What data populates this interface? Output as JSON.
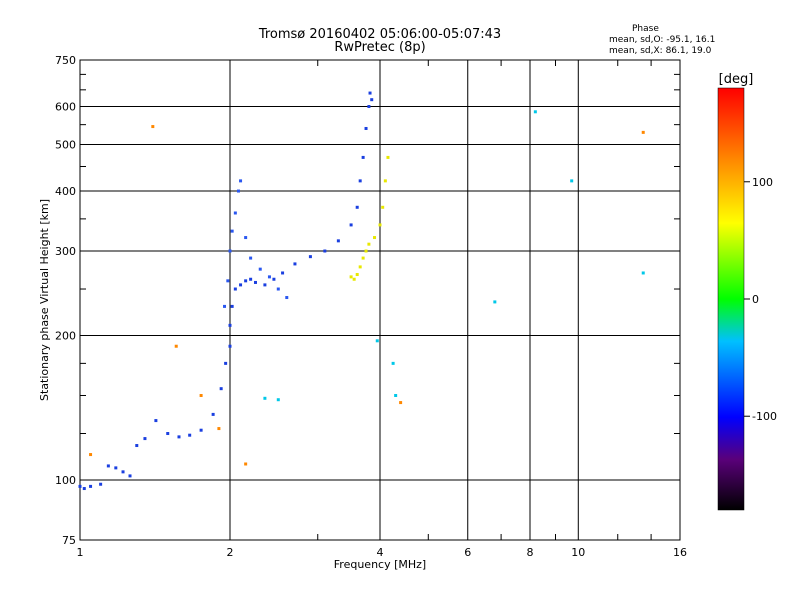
{
  "chart_data": {
    "type": "scatter",
    "title": "Tromsø 20160402 05:06:00-05:07:43",
    "subtitle": "RwPretec (8p)",
    "xlabel": "Frequency [MHz]",
    "ylabel": "Stationary phase Virtual Height [km]",
    "x_scale": "log",
    "y_scale": "log",
    "xlim": [
      1,
      16
    ],
    "ylim": [
      75,
      750
    ],
    "x_ticks": [
      1,
      2,
      4,
      6,
      8,
      10,
      16
    ],
    "x_tick_labels": [
      "1",
      "2",
      "4",
      "6",
      "8",
      "10",
      "16"
    ],
    "y_ticks": [
      75,
      100,
      200,
      300,
      400,
      500,
      600,
      750
    ],
    "y_tick_labels": [
      "75",
      "100",
      "200",
      "300",
      "400",
      "500",
      "600",
      "750"
    ],
    "grid": true,
    "stats": {
      "heading": "Phase",
      "o_line": "mean, sd,O: -95.1, 16.1",
      "x_line": "mean, sd,X:  86.1, 19.0"
    },
    "colorbar": {
      "label": "[deg]",
      "range": [
        -180,
        180
      ],
      "ticks": [
        100,
        0,
        -100
      ],
      "tick_labels": [
        "100",
        "0",
        "-100"
      ]
    },
    "point_groups": [
      {
        "name": "O-trace (blue)",
        "color": "#1a3fe0",
        "x": [
          1.0,
          1.02,
          1.05,
          1.1,
          1.14,
          1.18,
          1.22,
          1.26,
          1.3,
          1.35,
          1.42,
          1.5,
          1.58,
          1.66,
          1.75,
          1.85,
          1.92,
          1.96,
          2.0,
          2.0,
          2.02,
          2.05,
          2.1,
          2.15,
          2.2,
          2.25,
          2.35,
          2.45,
          2.55,
          2.7,
          2.9,
          3.1,
          3.3,
          3.5,
          3.6,
          3.65,
          3.7,
          3.75,
          3.8,
          3.82,
          3.85
        ],
        "y": [
          97,
          96,
          97,
          98,
          107,
          106,
          104,
          102,
          118,
          122,
          133,
          125,
          123,
          124,
          127,
          137,
          155,
          175,
          190,
          210,
          230,
          250,
          255,
          260,
          262,
          258,
          255,
          262,
          270,
          282,
          292,
          300,
          315,
          340,
          370,
          420,
          470,
          540,
          600,
          640,
          620
        ]
      },
      {
        "name": "F-spread (blue cloud)",
        "color": "#2a57f0",
        "x": [
          1.95,
          1.98,
          2.0,
          2.02,
          2.05,
          2.08,
          2.1,
          2.15,
          2.2,
          2.3,
          2.4,
          2.5,
          2.6
        ],
        "y": [
          230,
          260,
          300,
          330,
          360,
          400,
          420,
          320,
          290,
          275,
          265,
          250,
          240
        ]
      },
      {
        "name": "X-trace (yellow)",
        "color": "#e8e800",
        "x": [
          3.5,
          3.55,
          3.6,
          3.65,
          3.7,
          3.75,
          3.8,
          3.9,
          4.0,
          4.05,
          4.1,
          4.15
        ],
        "y": [
          265,
          262,
          268,
          278,
          290,
          300,
          310,
          320,
          340,
          370,
          420,
          470
        ]
      },
      {
        "name": "Scattered (cyan)",
        "color": "#00c8e8",
        "x": [
          3.95,
          4.25,
          4.3,
          6.8,
          8.2,
          9.7,
          13.5,
          2.35,
          2.5
        ],
        "y": [
          195,
          175,
          150,
          235,
          585,
          420,
          270,
          148,
          147
        ]
      },
      {
        "name": "Scattered (orange/red)",
        "color": "#ff8800",
        "x": [
          1.05,
          1.4,
          1.56,
          1.75,
          2.15,
          4.4,
          13.5,
          1.9
        ],
        "y": [
          113,
          545,
          190,
          150,
          108,
          145,
          530,
          128
        ]
      }
    ]
  }
}
